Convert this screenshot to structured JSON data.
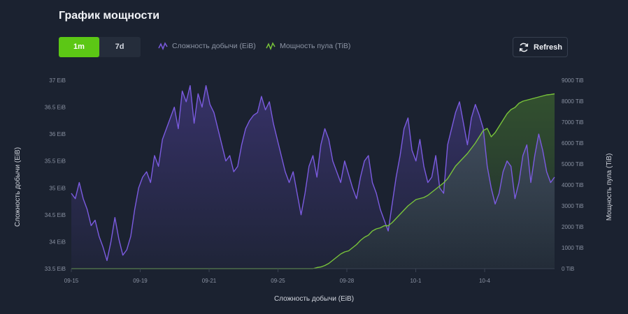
{
  "header": {
    "title": "График мощности"
  },
  "tabs": [
    {
      "label": "1m",
      "active": true
    },
    {
      "label": "7d",
      "active": false
    }
  ],
  "legend": {
    "difficulty": "Сложность добычи (EiB)",
    "hashrate": "Мощность пула (TiB)"
  },
  "refresh_label": "Refresh",
  "colors": {
    "difficulty": "#7b5be0",
    "hashrate": "#79c43a",
    "accent": "#5cc715",
    "background": "#1b2230"
  },
  "chart_data": {
    "type": "line",
    "xlabel": "Сложность добычи (EiB)",
    "ylabel_left": "Сложность добычи (EiB)",
    "ylabel_right": "Мощность пула (TiB)",
    "x_ticks": [
      "09-15",
      "09-19",
      "09-21",
      "09-25",
      "09-28",
      "10-1",
      "10-4"
    ],
    "y_left_ticks": [
      "33.5 EiB",
      "34 EiB",
      "34.5 EiB",
      "35 EiB",
      "35.5 EiB",
      "36 EiB",
      "36.5 EiB",
      "37 EiB"
    ],
    "y_right_ticks": [
      "0 TiB",
      "1000 TiB",
      "2000 TiB",
      "3000 TiB",
      "4000 TiB",
      "5000 TiB",
      "6000 TiB",
      "7000 TiB",
      "8000 TiB",
      "9000 TiB"
    ],
    "ylim_left": [
      33.5,
      37
    ],
    "ylim_right": [
      0,
      9000
    ],
    "grid": false,
    "series": [
      {
        "name": "Сложность добычи (EiB)",
        "axis": "left",
        "values": [
          34.9,
          34.8,
          35.1,
          34.8,
          34.6,
          34.3,
          34.4,
          34.1,
          33.9,
          33.65,
          34,
          34.45,
          34.05,
          33.75,
          33.85,
          34.1,
          34.6,
          35,
          35.2,
          35.3,
          35.1,
          35.6,
          35.4,
          35.9,
          36.1,
          36.3,
          36.5,
          36.1,
          36.8,
          36.6,
          36.9,
          36.2,
          36.75,
          36.5,
          36.9,
          36.55,
          36.4,
          36.1,
          35.8,
          35.5,
          35.6,
          35.3,
          35.4,
          35.8,
          36.1,
          36.25,
          36.35,
          36.4,
          36.7,
          36.45,
          36.6,
          36.2,
          35.9,
          35.6,
          35.3,
          35.1,
          35.3,
          34.9,
          34.5,
          34.9,
          35.4,
          35.6,
          35.2,
          35.8,
          36.1,
          35.9,
          35.5,
          35.3,
          35.1,
          35.5,
          35.25,
          35.0,
          34.8,
          35.2,
          35.5,
          35.6,
          35.1,
          34.9,
          34.6,
          34.4,
          34.2,
          34.7,
          35.2,
          35.6,
          36.1,
          36.3,
          35.7,
          35.5,
          35.9,
          35.4,
          35.1,
          35.2,
          35.6,
          35.0,
          34.9,
          35.8,
          36.1,
          36.4,
          36.6,
          36.2,
          35.8,
          36.3,
          36.55,
          36.35,
          36.1,
          35.4,
          35.0,
          34.7,
          34.9,
          35.3,
          35.5,
          35.4,
          34.8,
          35.1,
          35.6,
          35.8,
          35.1,
          35.6,
          36.0,
          35.7,
          35.3,
          35.1,
          35.2
        ]
      },
      {
        "name": "Мощность пула (TiB)",
        "axis": "right",
        "values": [
          0,
          0,
          0,
          0,
          0,
          0,
          0,
          0,
          0,
          0,
          0,
          0,
          0,
          0,
          0,
          0,
          0,
          0,
          0,
          0,
          0,
          0,
          0,
          0,
          0,
          0,
          0,
          0,
          0,
          0,
          0,
          0,
          0,
          0,
          0,
          0,
          0,
          0,
          0,
          0,
          0,
          0,
          0,
          0,
          0,
          0,
          0,
          0,
          0,
          0,
          0,
          0,
          0,
          0,
          0,
          0,
          0,
          0,
          0,
          0,
          0,
          0,
          50,
          80,
          150,
          250,
          400,
          550,
          700,
          800,
          850,
          1000,
          1150,
          1350,
          1500,
          1600,
          1800,
          1900,
          1950,
          2050,
          2050,
          2200,
          2400,
          2600,
          2800,
          3000,
          3150,
          3300,
          3350,
          3400,
          3500,
          3650,
          3800,
          3950,
          4100,
          4300,
          4600,
          4900,
          5100,
          5300,
          5500,
          5750,
          6000,
          6300,
          6600,
          6700,
          6300,
          6500,
          6800,
          7100,
          7400,
          7600,
          7700,
          7900,
          8000,
          8050,
          8100,
          8150,
          8200,
          8250,
          8300,
          8320,
          8350
        ]
      }
    ]
  }
}
